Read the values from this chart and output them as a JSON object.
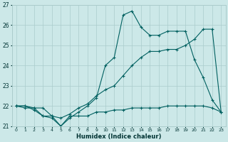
{
  "xlabel": "Humidex (Indice chaleur)",
  "x_ticks": [
    0,
    1,
    2,
    3,
    4,
    5,
    6,
    7,
    8,
    9,
    10,
    11,
    12,
    13,
    14,
    15,
    16,
    17,
    18,
    19,
    20,
    21,
    22,
    23
  ],
  "ylim": [
    21.0,
    27.0
  ],
  "y_ticks": [
    21,
    22,
    23,
    24,
    25,
    26,
    27
  ],
  "bg_color": "#cce8e8",
  "grid_color": "#aacccc",
  "line_color": "#006060",
  "series_flat": [
    22.0,
    22.0,
    21.8,
    21.5,
    21.5,
    21.0,
    21.5,
    21.5,
    21.5,
    21.7,
    21.7,
    21.8,
    21.8,
    21.9,
    21.9,
    21.9,
    21.9,
    22.0,
    22.0,
    22.0,
    22.0,
    22.0,
    21.9,
    21.7
  ],
  "series_zigzag": [
    22.0,
    21.9,
    21.9,
    21.5,
    21.4,
    21.0,
    21.4,
    21.7,
    22.0,
    22.4,
    24.0,
    24.4,
    26.5,
    26.7,
    25.9,
    25.5,
    25.5,
    25.7,
    25.7,
    25.7,
    24.3,
    23.4,
    22.3,
    21.7
  ],
  "series_smooth": [
    22.0,
    22.0,
    21.9,
    21.9,
    21.5,
    21.4,
    21.6,
    21.9,
    22.1,
    22.5,
    22.8,
    23.0,
    23.5,
    24.0,
    24.4,
    24.7,
    24.7,
    24.8,
    24.8,
    25.0,
    25.3,
    25.8,
    25.8,
    21.7
  ]
}
